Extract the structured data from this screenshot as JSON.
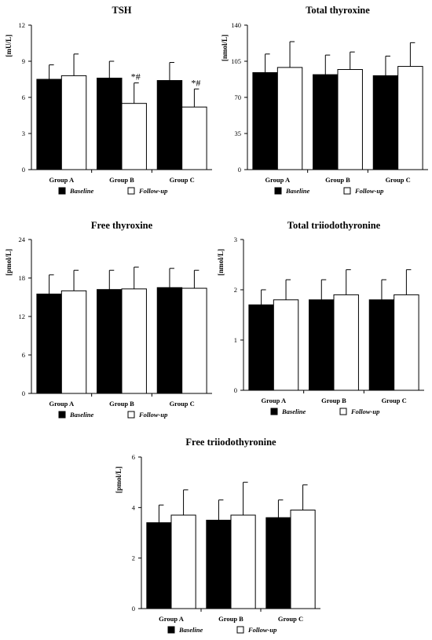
{
  "legend": {
    "baseline": "Baseline",
    "followup": "Follow-up"
  },
  "colors": {
    "baseline": "#000000",
    "followup": "#ffffff",
    "stroke": "#000000"
  },
  "chart_data": [
    {
      "type": "bar",
      "title": "TSH",
      "ylabel": "[mU/L]",
      "categories": [
        "Group A",
        "Group B",
        "Group C"
      ],
      "ylim": [
        0,
        12
      ],
      "yticks": [
        "0",
        "3",
        "6",
        "9",
        "12"
      ],
      "series": [
        {
          "name": "Baseline",
          "values": [
            7.5,
            7.6,
            7.4
          ],
          "errors": [
            1.2,
            1.4,
            1.5
          ]
        },
        {
          "name": "Follow-up",
          "values": [
            7.8,
            5.5,
            5.2
          ],
          "errors": [
            1.8,
            1.7,
            1.5
          ]
        }
      ],
      "annotations": [
        "",
        "*#",
        "*#"
      ]
    },
    {
      "type": "bar",
      "title": "Total thyroxine",
      "ylabel": "[nmol/L]",
      "categories": [
        "Group A",
        "Group B",
        "Group C"
      ],
      "ylim": [
        0,
        140
      ],
      "yticks": [
        "0",
        "35",
        "70",
        "105",
        "140"
      ],
      "series": [
        {
          "name": "Baseline",
          "values": [
            94,
            92,
            91
          ],
          "errors": [
            18,
            19,
            19
          ]
        },
        {
          "name": "Follow-up",
          "values": [
            99,
            97,
            100
          ],
          "errors": [
            25,
            17,
            23
          ]
        }
      ]
    },
    {
      "type": "bar",
      "title": "Free thyroxine",
      "ylabel": "[pmol/L]",
      "categories": [
        "Group A",
        "Group B",
        "Group C"
      ],
      "ylim": [
        0,
        24
      ],
      "yticks": [
        "0",
        "6",
        "12",
        "18",
        "24"
      ],
      "series": [
        {
          "name": "Baseline",
          "values": [
            15.5,
            16.2,
            16.5
          ],
          "errors": [
            3.0,
            3.0,
            3.0
          ]
        },
        {
          "name": "Follow-up",
          "values": [
            16.0,
            16.3,
            16.4
          ],
          "errors": [
            3.2,
            3.4,
            2.8
          ]
        }
      ]
    },
    {
      "type": "bar",
      "title": "Total triiodothyronine",
      "ylabel": "[nmol/L]",
      "categories": [
        "Group A",
        "Group B",
        "Group C"
      ],
      "ylim": [
        0,
        3
      ],
      "yticks": [
        "0",
        "1",
        "2",
        "3"
      ],
      "series": [
        {
          "name": "Baseline",
          "values": [
            1.7,
            1.8,
            1.8
          ],
          "errors": [
            0.3,
            0.4,
            0.4
          ]
        },
        {
          "name": "Follow-up",
          "values": [
            1.8,
            1.9,
            1.9
          ],
          "errors": [
            0.4,
            0.5,
            0.5
          ]
        }
      ]
    },
    {
      "type": "bar",
      "title": "Free triiodothyronine",
      "ylabel": "[pmol/L]",
      "categories": [
        "Group A",
        "Group B",
        "Group C"
      ],
      "ylim": [
        0,
        6
      ],
      "yticks": [
        "0",
        "2",
        "4",
        "6"
      ],
      "series": [
        {
          "name": "Baseline",
          "values": [
            3.4,
            3.5,
            3.6
          ],
          "errors": [
            0.7,
            0.8,
            0.7
          ]
        },
        {
          "name": "Follow-up",
          "values": [
            3.7,
            3.7,
            3.9
          ],
          "errors": [
            1.0,
            1.3,
            1.0
          ]
        }
      ]
    }
  ]
}
